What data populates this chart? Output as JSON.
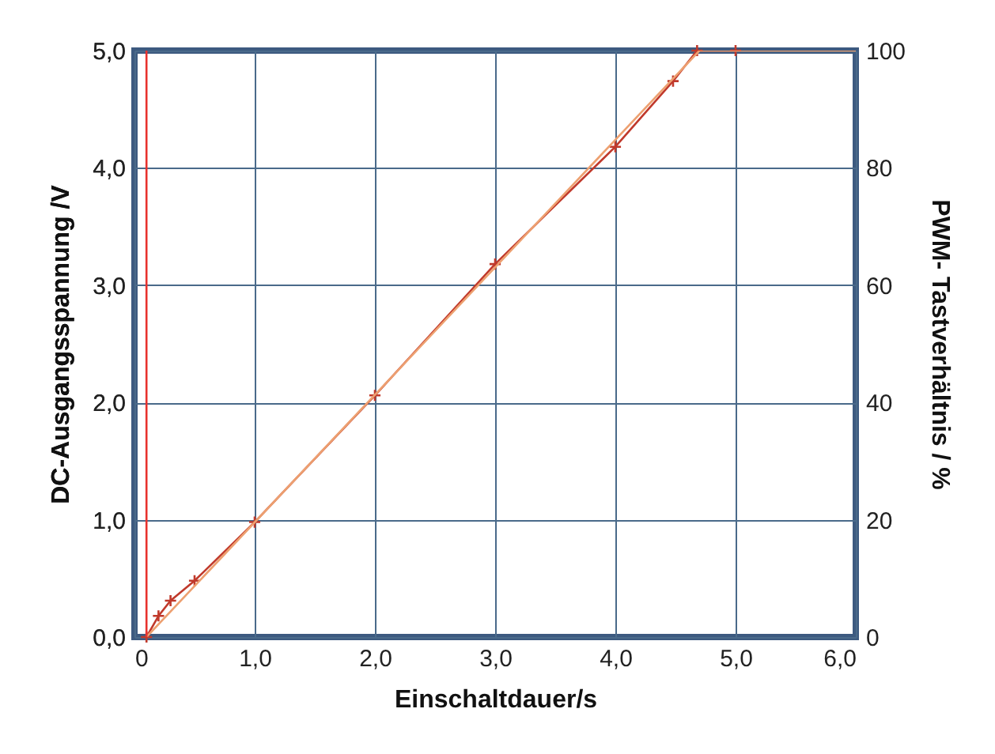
{
  "chart_data": {
    "type": "line",
    "xlabel": "Einschaltdauer/s",
    "ylabel": "DC-Ausgangsspannung /V",
    "y2label": "PWM- Tastverhältnis / %",
    "xlim": [
      0,
      6
    ],
    "xticks": [
      0,
      {
        "value": 1,
        "label": "1,0"
      },
      {
        "value": 2,
        "label": "2,0"
      },
      {
        "value": 3,
        "label": "3,0"
      },
      {
        "value": 4,
        "label": "4,0"
      },
      {
        "value": 5,
        "label": "5,0"
      },
      {
        "value": 6,
        "label": "6,0"
      }
    ],
    "ylim": [
      0,
      5
    ],
    "yticks": [
      {
        "value": 0,
        "label": "0,0"
      },
      {
        "value": 1,
        "label": "1,0"
      },
      {
        "value": 2,
        "label": "2,0"
      },
      {
        "value": 3,
        "label": "3,0"
      },
      {
        "value": 4,
        "label": "4,0"
      },
      {
        "value": 5,
        "label": "5,0"
      }
    ],
    "y2lim": [
      0,
      100
    ],
    "y2ticks": [
      0,
      20,
      40,
      60,
      80,
      100
    ],
    "grid": true,
    "line_style": "solid",
    "series": [
      {
        "color": "#c0392b",
        "marker": "cross",
        "x": [
          0.1,
          0.2,
          0.3,
          0.5,
          1.0,
          2.0,
          3.0,
          4.0,
          4.48,
          4.68,
          5.0
        ],
        "values": [
          0.0,
          0.18,
          0.31,
          0.48,
          0.98,
          2.06,
          3.18,
          4.18,
          4.74,
          5.0,
          5.0
        ]
      },
      {
        "color": "#eda070",
        "axis": "y2",
        "x": [
          0.1,
          4.7,
          6.0
        ],
        "values": [
          0,
          100,
          100
        ]
      },
      {
        "color": "#e8322e",
        "x": [
          0.1,
          0.1
        ],
        "values": [
          0,
          5
        ]
      }
    ]
  }
}
